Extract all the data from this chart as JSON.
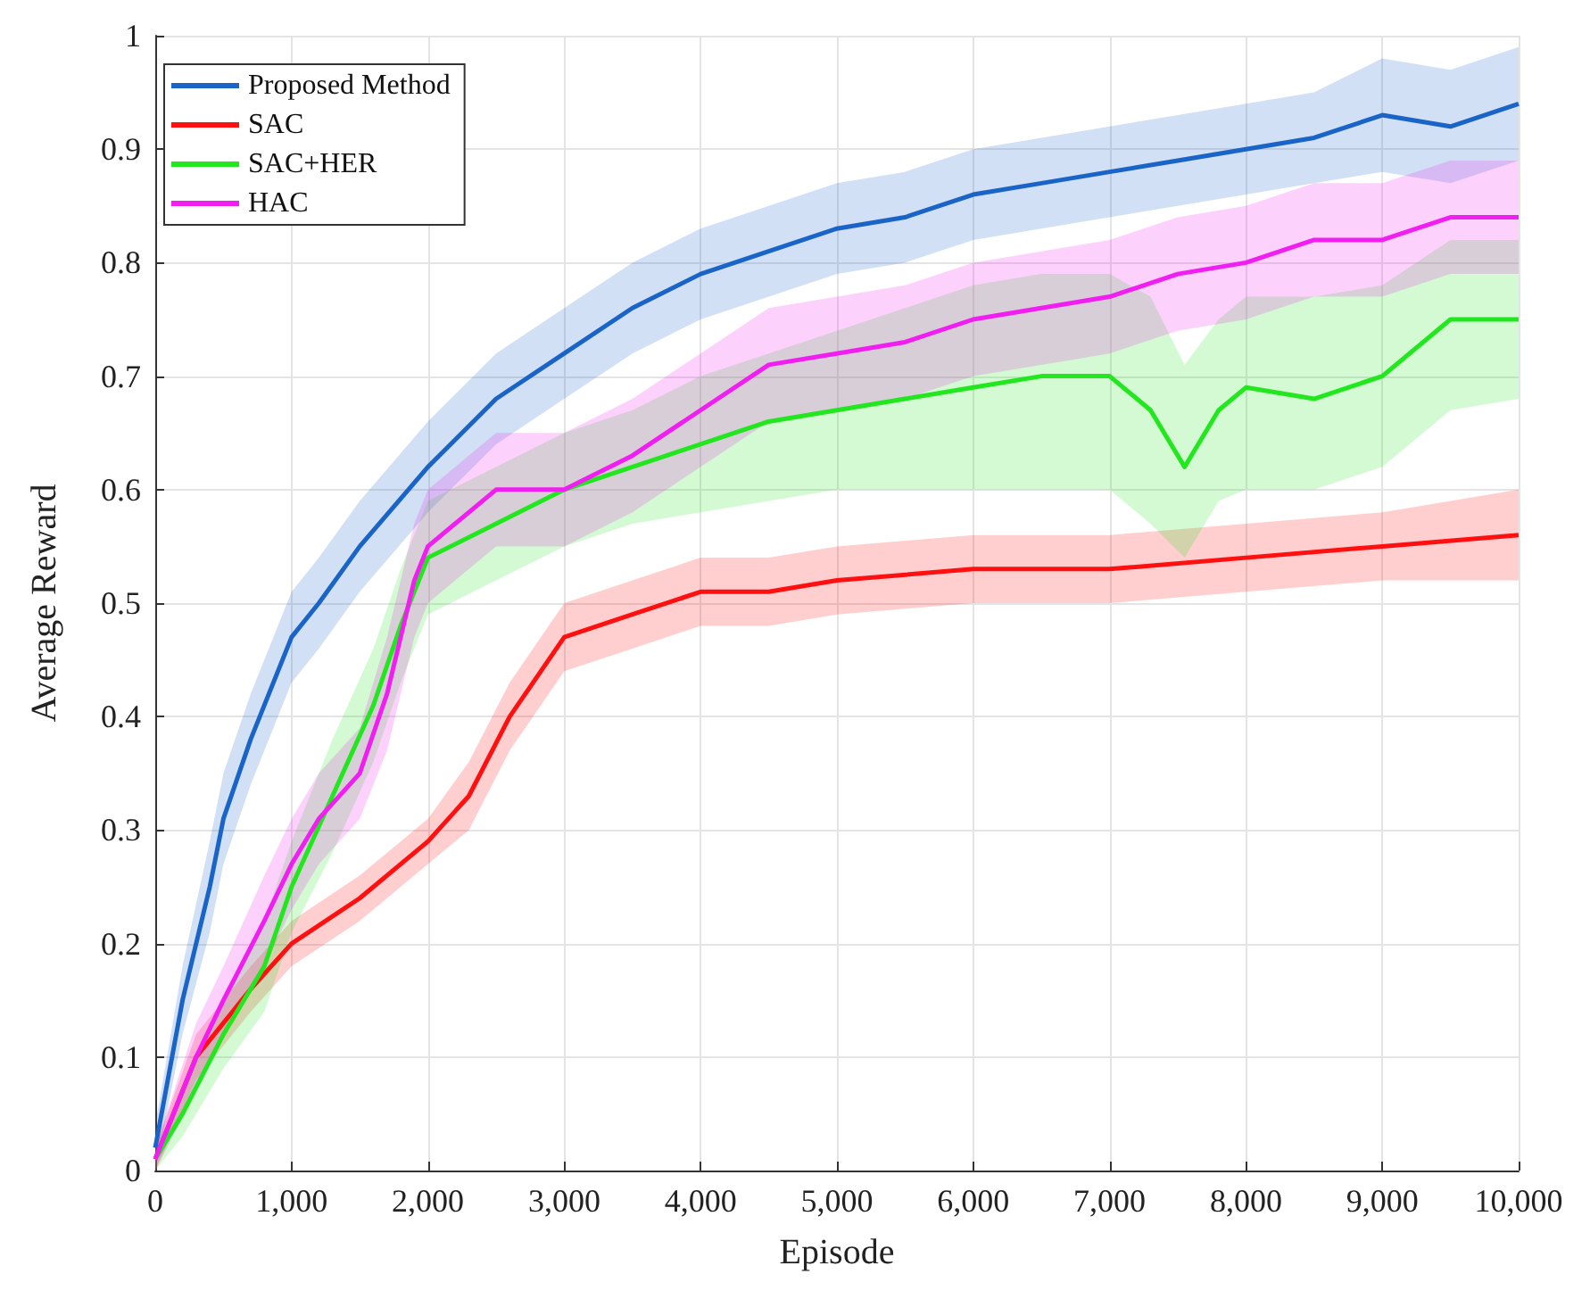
{
  "chart_data": {
    "type": "line",
    "xlabel": "Episode",
    "ylabel": "Average Reward",
    "xlim": [
      0,
      10000
    ],
    "ylim": [
      0,
      1
    ],
    "xticks": [
      0,
      {
        "value": 1000,
        "label": "1,000"
      },
      {
        "value": 2000,
        "label": "2,000"
      },
      {
        "value": 3000,
        "label": "3,000"
      },
      {
        "value": 4000,
        "label": "4,000"
      },
      {
        "value": 5000,
        "label": "5,000"
      },
      {
        "value": 6000,
        "label": "6,000"
      },
      {
        "value": 7000,
        "label": "7,000"
      },
      {
        "value": 8000,
        "label": "8,000"
      },
      {
        "value": 9000,
        "label": "9,000"
      },
      {
        "value": 10000,
        "label": "10,000"
      }
    ],
    "yticks": [
      0,
      0.1,
      0.2,
      0.3,
      0.4,
      0.5,
      0.6,
      0.7,
      0.8,
      0.9,
      1
    ],
    "grid": true,
    "legend": "top left",
    "line_style": "solid",
    "series": [
      {
        "name": "Proposed Method",
        "color": "#1a64c8",
        "x": [
          0,
          200,
          400,
          500,
          700,
          1000,
          1200,
          1500,
          2000,
          2500,
          3000,
          3500,
          4000,
          4500,
          5000,
          5500,
          6000,
          6500,
          7000,
          7500,
          8000,
          8500,
          9000,
          9500,
          10000
        ],
        "values": [
          0.02,
          0.15,
          0.25,
          0.31,
          0.38,
          0.47,
          0.5,
          0.55,
          0.62,
          0.68,
          0.72,
          0.76,
          0.79,
          0.81,
          0.83,
          0.84,
          0.86,
          0.87,
          0.88,
          0.89,
          0.9,
          0.91,
          0.93,
          0.92,
          0.94
        ],
        "lower": [
          0,
          0.12,
          0.21,
          0.27,
          0.34,
          0.43,
          0.46,
          0.51,
          0.58,
          0.64,
          0.68,
          0.72,
          0.75,
          0.77,
          0.79,
          0.8,
          0.82,
          0.83,
          0.84,
          0.85,
          0.86,
          0.87,
          0.88,
          0.87,
          0.89
        ],
        "upper": [
          0.04,
          0.18,
          0.29,
          0.35,
          0.42,
          0.51,
          0.54,
          0.59,
          0.66,
          0.72,
          0.76,
          0.8,
          0.83,
          0.85,
          0.87,
          0.88,
          0.9,
          0.91,
          0.92,
          0.93,
          0.94,
          0.95,
          0.98,
          0.97,
          0.99
        ]
      },
      {
        "name": "SAC",
        "color": "#ff1010",
        "x": [
          0,
          300,
          500,
          700,
          1000,
          1500,
          2000,
          2300,
          2600,
          3000,
          3500,
          4000,
          4500,
          5000,
          6000,
          7000,
          8000,
          9000,
          10000
        ],
        "values": [
          0.01,
          0.1,
          0.13,
          0.16,
          0.2,
          0.24,
          0.29,
          0.33,
          0.4,
          0.47,
          0.49,
          0.51,
          0.51,
          0.52,
          0.53,
          0.53,
          0.54,
          0.55,
          0.56
        ],
        "lower": [
          0,
          0.08,
          0.11,
          0.14,
          0.18,
          0.22,
          0.27,
          0.3,
          0.37,
          0.44,
          0.46,
          0.48,
          0.48,
          0.49,
          0.5,
          0.5,
          0.51,
          0.52,
          0.52
        ],
        "upper": [
          0.02,
          0.12,
          0.15,
          0.18,
          0.22,
          0.26,
          0.31,
          0.36,
          0.43,
          0.5,
          0.52,
          0.54,
          0.54,
          0.55,
          0.56,
          0.56,
          0.57,
          0.58,
          0.6
        ]
      },
      {
        "name": "SAC+HER",
        "color": "#22e61e",
        "x": [
          0,
          200,
          500,
          800,
          1000,
          1300,
          1600,
          1800,
          2000,
          2500,
          3000,
          3500,
          4000,
          4500,
          5000,
          5500,
          6000,
          6500,
          7000,
          7300,
          7550,
          7800,
          8000,
          8500,
          9000,
          9500,
          10000
        ],
        "values": [
          0.01,
          0.05,
          0.12,
          0.18,
          0.25,
          0.33,
          0.41,
          0.48,
          0.54,
          0.57,
          0.6,
          0.62,
          0.64,
          0.66,
          0.67,
          0.68,
          0.69,
          0.7,
          0.7,
          0.67,
          0.62,
          0.67,
          0.69,
          0.68,
          0.7,
          0.75,
          0.75
        ],
        "lower": [
          0,
          0.03,
          0.09,
          0.14,
          0.21,
          0.28,
          0.36,
          0.43,
          0.49,
          0.52,
          0.55,
          0.57,
          0.58,
          0.59,
          0.6,
          0.6,
          0.6,
          0.6,
          0.6,
          0.57,
          0.54,
          0.59,
          0.6,
          0.6,
          0.62,
          0.67,
          0.68
        ],
        "upper": [
          0.02,
          0.07,
          0.15,
          0.22,
          0.29,
          0.38,
          0.46,
          0.53,
          0.59,
          0.62,
          0.65,
          0.67,
          0.7,
          0.72,
          0.74,
          0.76,
          0.78,
          0.79,
          0.79,
          0.77,
          0.71,
          0.75,
          0.77,
          0.77,
          0.78,
          0.82,
          0.82
        ]
      },
      {
        "name": "HAC",
        "color": "#f01ef0",
        "x": [
          0,
          300,
          500,
          800,
          1000,
          1200,
          1500,
          1700,
          1900,
          2000,
          2500,
          3000,
          3500,
          4000,
          4500,
          5000,
          5500,
          6000,
          6500,
          7000,
          7500,
          8000,
          8500,
          9000,
          9500,
          10000
        ],
        "values": [
          0.01,
          0.1,
          0.15,
          0.22,
          0.27,
          0.31,
          0.35,
          0.42,
          0.52,
          0.55,
          0.6,
          0.6,
          0.63,
          0.67,
          0.71,
          0.72,
          0.73,
          0.75,
          0.76,
          0.77,
          0.79,
          0.8,
          0.82,
          0.82,
          0.84,
          0.84
        ],
        "lower": [
          0,
          0.07,
          0.12,
          0.18,
          0.23,
          0.27,
          0.31,
          0.37,
          0.47,
          0.5,
          0.55,
          0.55,
          0.58,
          0.62,
          0.66,
          0.67,
          0.68,
          0.7,
          0.71,
          0.72,
          0.74,
          0.75,
          0.77,
          0.77,
          0.79,
          0.79
        ],
        "upper": [
          0.02,
          0.13,
          0.18,
          0.26,
          0.31,
          0.35,
          0.39,
          0.47,
          0.57,
          0.6,
          0.65,
          0.65,
          0.68,
          0.72,
          0.76,
          0.77,
          0.78,
          0.8,
          0.81,
          0.82,
          0.84,
          0.85,
          0.87,
          0.87,
          0.89,
          0.89
        ]
      }
    ]
  }
}
